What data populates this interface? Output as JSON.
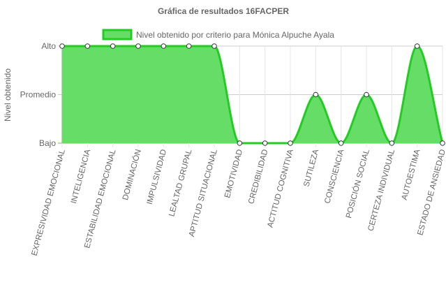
{
  "chart_data": {
    "type": "area",
    "title": "Gráfica de resultados 16FACPER",
    "ylabel": "Nivel obtenido",
    "xlabel": "",
    "y_levels": [
      "Bajo",
      "Promedio",
      "Alto"
    ],
    "ylim": [
      0,
      2
    ],
    "grid": true,
    "legend_position": "top",
    "colors": {
      "fill": "#66dd66",
      "stroke": "#22cc22",
      "grid": "#e5e5e5",
      "axis": "#999999"
    },
    "categories": [
      "EXPRESIVIDAD EMOCIONAL",
      "INTELIGENCIA",
      "ESTABILIDAD EMOCIONAL",
      "DOMINACIÓN",
      "IMPULSIVIDAD",
      "LEALTAD GRUPAL",
      "APTITUD SITUACIONAL",
      "EMOTIVIDAD",
      "CREDIBILIDAD",
      "ACTITUD COGNITIVA",
      "SUTILEZA",
      "CONSCIENCIA",
      "POSICIÓN SOCIAL",
      "CERTEZA INDIVIDUAL",
      "AUTOESTIMA",
      "ESTADO DE ANSIEDAD"
    ],
    "series": [
      {
        "name": "Nivel obtenido por criterio para Mónica Alpuche Ayala",
        "values": [
          2,
          2,
          2,
          2,
          2,
          2,
          2,
          0,
          0,
          0,
          1,
          0,
          1,
          0,
          2,
          0
        ]
      }
    ]
  }
}
